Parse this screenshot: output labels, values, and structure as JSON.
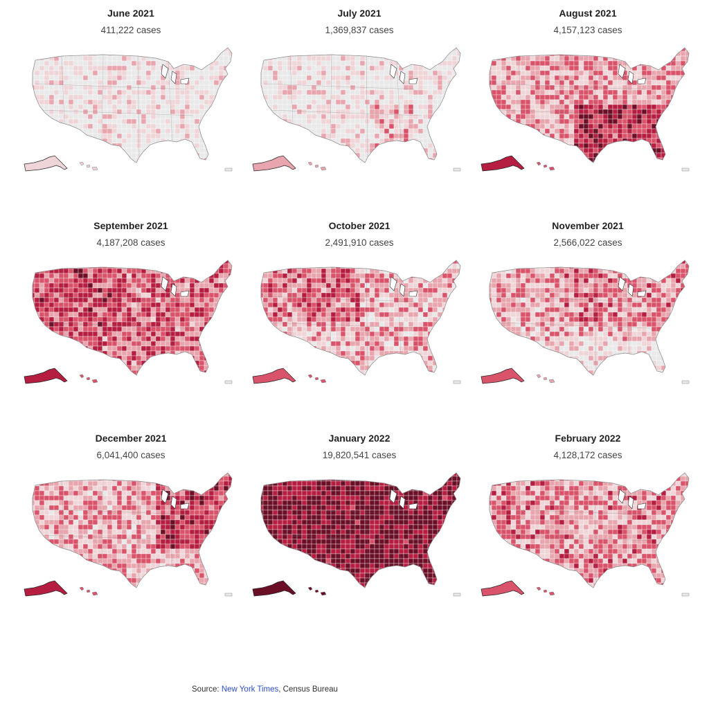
{
  "panels": [
    {
      "month": "June 2021",
      "cases": "411,222 cases",
      "intensity": 0.08
    },
    {
      "month": "July 2021",
      "cases": "1,369,837 cases",
      "intensity": 0.14
    },
    {
      "month": "August 2021",
      "cases": "4,157,123 cases",
      "intensity": 0.5
    },
    {
      "month": "September 2021",
      "cases": "4,187,208 cases",
      "intensity": 0.55
    },
    {
      "month": "October 2021",
      "cases": "2,491,910 cases",
      "intensity": 0.38
    },
    {
      "month": "November 2021",
      "cases": "2,566,022 cases",
      "intensity": 0.36
    },
    {
      "month": "December 2021",
      "cases": "6,041,400 cases",
      "intensity": 0.5
    },
    {
      "month": "January 2022",
      "cases": "19,820,541 cases",
      "intensity": 0.95
    },
    {
      "month": "February 2022",
      "cases": "4,128,172 cases",
      "intensity": 0.45
    }
  ],
  "source": {
    "prefix": "Source: ",
    "link_text": "New York Times",
    "suffix": ", Census Bureau"
  },
  "colors": {
    "none": "#e9e9ea",
    "level1": "#efd5d8",
    "level2": "#e8a5ad",
    "level3": "#d9546b",
    "level4": "#b51e40",
    "level5": "#6b0f26",
    "border": "#ffffff",
    "link": "#2b4fc9"
  }
}
